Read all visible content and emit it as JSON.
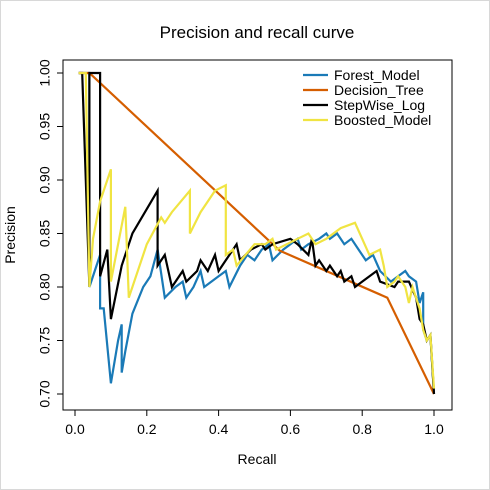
{
  "chart_data": {
    "type": "line",
    "title": "Precision and recall curve",
    "xlabel": "Recall",
    "ylabel": "Precision",
    "xlim": [
      0.0,
      1.0
    ],
    "ylim": [
      0.7,
      1.0
    ],
    "xticks": [
      "0.0",
      "0.2",
      "0.4",
      "0.6",
      "0.8",
      "1.0"
    ],
    "yticks": [
      "0.70",
      "0.75",
      "0.80",
      "0.85",
      "0.90",
      "0.95",
      "1.00"
    ],
    "grid": false,
    "legend_position": "top-right",
    "series": [
      {
        "name": "Forest_Model",
        "color": "#1a7ab7",
        "points": [
          [
            0.01,
            1.0
          ],
          [
            0.04,
            1.0
          ],
          [
            0.04,
            0.8
          ],
          [
            0.07,
            0.83
          ],
          [
            0.07,
            0.78
          ],
          [
            0.08,
            0.78
          ],
          [
            0.1,
            0.71
          ],
          [
            0.12,
            0.75
          ],
          [
            0.13,
            0.765
          ],
          [
            0.13,
            0.72
          ],
          [
            0.14,
            0.74
          ],
          [
            0.16,
            0.775
          ],
          [
            0.19,
            0.8
          ],
          [
            0.21,
            0.81
          ],
          [
            0.23,
            0.835
          ],
          [
            0.25,
            0.79
          ],
          [
            0.28,
            0.8
          ],
          [
            0.3,
            0.805
          ],
          [
            0.31,
            0.79
          ],
          [
            0.33,
            0.8
          ],
          [
            0.35,
            0.815
          ],
          [
            0.36,
            0.8
          ],
          [
            0.38,
            0.805
          ],
          [
            0.4,
            0.81
          ],
          [
            0.42,
            0.815
          ],
          [
            0.43,
            0.8
          ],
          [
            0.46,
            0.82
          ],
          [
            0.48,
            0.83
          ],
          [
            0.5,
            0.825
          ],
          [
            0.52,
            0.835
          ],
          [
            0.54,
            0.84
          ],
          [
            0.55,
            0.825
          ],
          [
            0.58,
            0.835
          ],
          [
            0.6,
            0.84
          ],
          [
            0.62,
            0.845
          ],
          [
            0.63,
            0.835
          ],
          [
            0.65,
            0.84
          ],
          [
            0.68,
            0.845
          ],
          [
            0.7,
            0.85
          ],
          [
            0.71,
            0.845
          ],
          [
            0.73,
            0.85
          ],
          [
            0.75,
            0.84
          ],
          [
            0.77,
            0.845
          ],
          [
            0.79,
            0.835
          ],
          [
            0.81,
            0.825
          ],
          [
            0.83,
            0.83
          ],
          [
            0.85,
            0.815
          ],
          [
            0.88,
            0.805
          ],
          [
            0.9,
            0.81
          ],
          [
            0.92,
            0.815
          ],
          [
            0.93,
            0.81
          ],
          [
            0.95,
            0.805
          ],
          [
            0.96,
            0.785
          ],
          [
            0.97,
            0.795
          ],
          [
            0.97,
            0.76
          ],
          [
            0.98,
            0.75
          ],
          [
            0.99,
            0.755
          ],
          [
            1.0,
            0.7
          ]
        ]
      },
      {
        "name": "Decision_Tree",
        "color": "#d55e00",
        "points": [
          [
            0.01,
            1.0
          ],
          [
            0.04,
            1.0
          ],
          [
            0.57,
            0.834
          ],
          [
            0.87,
            0.79
          ],
          [
            1.0,
            0.7
          ]
        ]
      },
      {
        "name": "StepWise_Log",
        "color": "#000000",
        "points": [
          [
            0.01,
            1.0
          ],
          [
            0.02,
            1.0
          ],
          [
            0.04,
            0.8
          ],
          [
            0.04,
            1.0
          ],
          [
            0.07,
            1.0
          ],
          [
            0.07,
            0.81
          ],
          [
            0.09,
            0.835
          ],
          [
            0.1,
            0.77
          ],
          [
            0.13,
            0.82
          ],
          [
            0.16,
            0.85
          ],
          [
            0.23,
            0.89
          ],
          [
            0.23,
            0.82
          ],
          [
            0.25,
            0.83
          ],
          [
            0.27,
            0.8
          ],
          [
            0.3,
            0.815
          ],
          [
            0.31,
            0.805
          ],
          [
            0.34,
            0.815
          ],
          [
            0.35,
            0.825
          ],
          [
            0.37,
            0.815
          ],
          [
            0.39,
            0.83
          ],
          [
            0.4,
            0.815
          ],
          [
            0.42,
            0.825
          ],
          [
            0.45,
            0.84
          ],
          [
            0.46,
            0.825
          ],
          [
            0.49,
            0.835
          ],
          [
            0.52,
            0.84
          ],
          [
            0.53,
            0.835
          ],
          [
            0.55,
            0.84
          ],
          [
            0.6,
            0.845
          ],
          [
            0.62,
            0.84
          ],
          [
            0.65,
            0.83
          ],
          [
            0.66,
            0.845
          ],
          [
            0.67,
            0.82
          ],
          [
            0.68,
            0.825
          ],
          [
            0.7,
            0.815
          ],
          [
            0.71,
            0.82
          ],
          [
            0.73,
            0.81
          ],
          [
            0.74,
            0.815
          ],
          [
            0.75,
            0.805
          ],
          [
            0.77,
            0.81
          ],
          [
            0.78,
            0.8
          ],
          [
            0.8,
            0.805
          ],
          [
            0.84,
            0.815
          ],
          [
            0.85,
            0.805
          ],
          [
            0.89,
            0.8
          ],
          [
            0.9,
            0.805
          ],
          [
            0.93,
            0.805
          ],
          [
            0.95,
            0.79
          ],
          [
            0.96,
            0.77
          ],
          [
            0.97,
            0.765
          ],
          [
            0.98,
            0.75
          ],
          [
            0.99,
            0.755
          ],
          [
            1.0,
            0.7
          ]
        ]
      },
      {
        "name": "Boosted_Model",
        "color": "#f0e442",
        "points": [
          [
            0.01,
            1.0
          ],
          [
            0.03,
            1.0
          ],
          [
            0.04,
            0.8
          ],
          [
            0.05,
            0.845
          ],
          [
            0.07,
            0.88
          ],
          [
            0.1,
            0.91
          ],
          [
            0.1,
            0.805
          ],
          [
            0.14,
            0.875
          ],
          [
            0.15,
            0.79
          ],
          [
            0.2,
            0.84
          ],
          [
            0.24,
            0.865
          ],
          [
            0.25,
            0.86
          ],
          [
            0.27,
            0.87
          ],
          [
            0.32,
            0.89
          ],
          [
            0.32,
            0.85
          ],
          [
            0.35,
            0.87
          ],
          [
            0.39,
            0.89
          ],
          [
            0.42,
            0.895
          ],
          [
            0.42,
            0.83
          ],
          [
            0.44,
            0.835
          ],
          [
            0.45,
            0.82
          ],
          [
            0.5,
            0.84
          ],
          [
            0.53,
            0.84
          ],
          [
            0.55,
            0.845
          ],
          [
            0.56,
            0.835
          ],
          [
            0.59,
            0.84
          ],
          [
            0.62,
            0.845
          ],
          [
            0.65,
            0.85
          ],
          [
            0.67,
            0.84
          ],
          [
            0.7,
            0.845
          ],
          [
            0.74,
            0.855
          ],
          [
            0.78,
            0.86
          ],
          [
            0.82,
            0.83
          ],
          [
            0.85,
            0.835
          ],
          [
            0.86,
            0.82
          ],
          [
            0.87,
            0.8
          ],
          [
            0.89,
            0.805
          ],
          [
            0.9,
            0.81
          ],
          [
            0.92,
            0.8
          ],
          [
            0.93,
            0.785
          ],
          [
            0.94,
            0.8
          ],
          [
            0.96,
            0.78
          ],
          [
            0.97,
            0.76
          ],
          [
            0.98,
            0.75
          ],
          [
            0.99,
            0.755
          ],
          [
            1.0,
            0.705
          ]
        ]
      }
    ]
  }
}
